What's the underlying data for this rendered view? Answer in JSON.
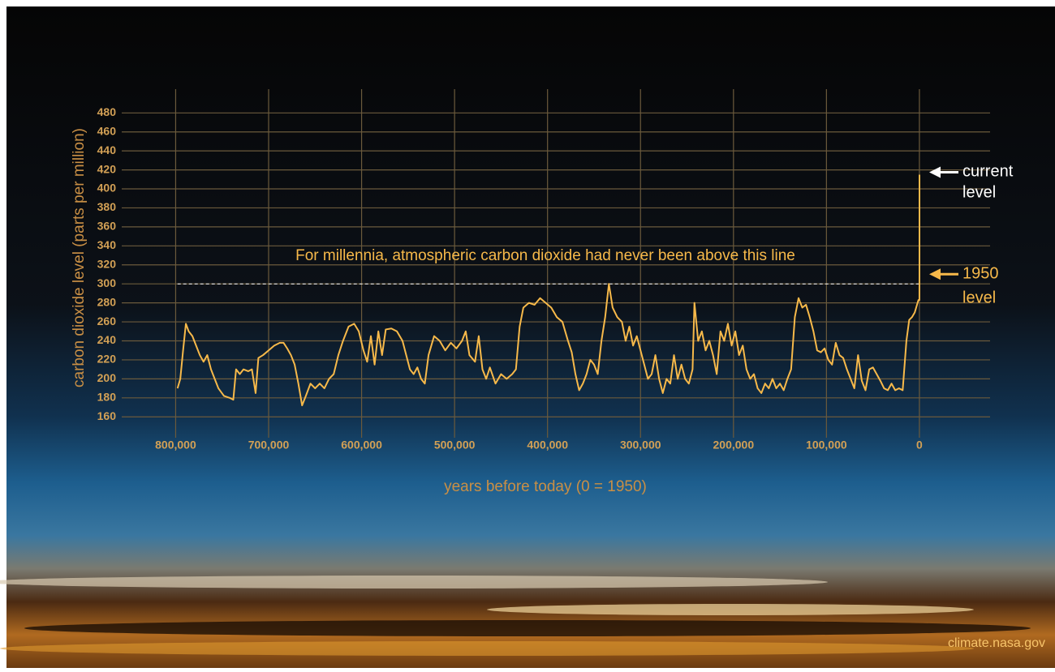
{
  "chart_data": {
    "type": "line",
    "ylabel": "carbon dioxide level (parts per million)",
    "xlabel": "years before today (0 = 1950)",
    "annotation": "For millennia, atmospheric carbon dioxide had never been above this line",
    "reference_line": 300,
    "current_label": [
      "current",
      "level"
    ],
    "marker_1950_label": [
      "1950",
      "level"
    ],
    "source": "climate.nasa.gov",
    "color": "#f7b94a",
    "grid": true,
    "xlim": [
      858000,
      -76000
    ],
    "ylim": [
      138,
      505
    ],
    "xticks": [
      {
        "value": 800000,
        "label": "800,000"
      },
      {
        "value": 700000,
        "label": "700,000"
      },
      {
        "value": 600000,
        "label": "600,000"
      },
      {
        "value": 500000,
        "label": "500,000"
      },
      {
        "value": 400000,
        "label": "400,000"
      },
      {
        "value": 300000,
        "label": "300,000"
      },
      {
        "value": 200000,
        "label": "200,000"
      },
      {
        "value": 100000,
        "label": "100,000"
      },
      0
    ],
    "yticks": [
      160,
      180,
      200,
      220,
      240,
      260,
      280,
      300,
      320,
      340,
      360,
      380,
      400,
      420,
      440,
      460,
      480
    ],
    "x": [
      798000,
      795000,
      792000,
      789000,
      786000,
      782000,
      778000,
      774000,
      770000,
      766000,
      762000,
      758000,
      754000,
      748000,
      742000,
      738000,
      735000,
      731000,
      727000,
      722000,
      718000,
      714000,
      711000,
      706000,
      700000,
      694000,
      688000,
      684000,
      680000,
      676000,
      672000,
      668000,
      664000,
      660000,
      655000,
      650000,
      645000,
      640000,
      635000,
      630000,
      625000,
      620000,
      614000,
      608000,
      603000,
      598000,
      594000,
      590000,
      586000,
      582000,
      578000,
      574000,
      568000,
      562000,
      556000,
      552000,
      548000,
      544000,
      540000,
      536000,
      532000,
      528000,
      522000,
      516000,
      510000,
      504000,
      498000,
      492000,
      488000,
      484000,
      478000,
      474000,
      470000,
      466000,
      462000,
      456000,
      450000,
      444000,
      438000,
      434000,
      430000,
      426000,
      420000,
      414000,
      408000,
      402000,
      396000,
      390000,
      384000,
      378000,
      374000,
      370000,
      366000,
      362000,
      358000,
      354000,
      350000,
      346000,
      342000,
      338000,
      334000,
      330000,
      325000,
      320000,
      316000,
      312000,
      308000,
      304000,
      300000,
      296000,
      292000,
      288000,
      284000,
      280000,
      276000,
      272000,
      268000,
      264000,
      260000,
      256000,
      252000,
      248000,
      244000,
      242000,
      238000,
      234000,
      230000,
      226000,
      222000,
      218000,
      214000,
      210000,
      206000,
      202000,
      198000,
      194000,
      190000,
      186000,
      182000,
      178000,
      174000,
      170000,
      166000,
      162000,
      158000,
      154000,
      150000,
      146000,
      142000,
      138000,
      134000,
      130000,
      126000,
      122000,
      118000,
      114000,
      110000,
      106000,
      102000,
      98000,
      94000,
      90000,
      86000,
      82000,
      78000,
      74000,
      70000,
      66000,
      62000,
      58000,
      54000,
      50000,
      46000,
      42000,
      38000,
      34000,
      30000,
      26000,
      22000,
      18000,
      14000,
      11000,
      8000,
      5000,
      2000,
      1000,
      0,
      -50,
      -60,
      -70
    ],
    "values": [
      190,
      200,
      230,
      258,
      250,
      245,
      235,
      225,
      218,
      225,
      210,
      200,
      190,
      182,
      180,
      178,
      210,
      205,
      210,
      208,
      210,
      185,
      222,
      225,
      230,
      235,
      238,
      238,
      232,
      225,
      215,
      195,
      172,
      182,
      195,
      190,
      195,
      190,
      200,
      205,
      225,
      240,
      255,
      258,
      250,
      230,
      218,
      245,
      215,
      250,
      225,
      252,
      253,
      250,
      240,
      225,
      210,
      205,
      212,
      200,
      195,
      225,
      245,
      240,
      230,
      238,
      232,
      240,
      250,
      225,
      218,
      245,
      210,
      200,
      212,
      195,
      205,
      200,
      205,
      210,
      255,
      275,
      280,
      278,
      285,
      280,
      275,
      265,
      260,
      240,
      228,
      205,
      188,
      195,
      205,
      220,
      215,
      205,
      240,
      265,
      300,
      275,
      265,
      260,
      240,
      255,
      235,
      245,
      230,
      215,
      200,
      205,
      225,
      200,
      185,
      200,
      195,
      225,
      200,
      215,
      200,
      195,
      210,
      280,
      240,
      250,
      230,
      240,
      225,
      205,
      250,
      240,
      258,
      235,
      250,
      225,
      235,
      210,
      200,
      205,
      190,
      185,
      195,
      190,
      200,
      190,
      195,
      188,
      200,
      210,
      265,
      285,
      275,
      278,
      265,
      250,
      230,
      228,
      232,
      220,
      215,
      238,
      225,
      222,
      210,
      200,
      190,
      225,
      198,
      188,
      210,
      212,
      205,
      198,
      190,
      188,
      195,
      188,
      190,
      188,
      240,
      262,
      265,
      270,
      280,
      283,
      283,
      310,
      370,
      415
    ]
  }
}
